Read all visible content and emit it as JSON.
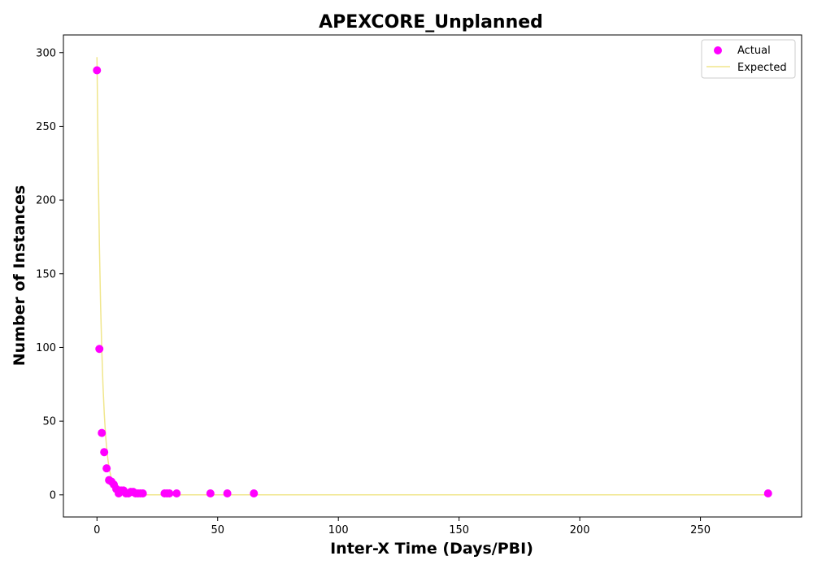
{
  "chart_data": {
    "type": "scatter",
    "title": "APEXCORE_Unplanned",
    "xlabel": "Inter-X Time (Days/PBI)",
    "ylabel": "Number of Instances",
    "xlim": [
      -13.9,
      291.9
    ],
    "ylim": [
      -15,
      312
    ],
    "xticks": [
      0,
      50,
      100,
      150,
      200,
      250
    ],
    "yticks": [
      0,
      50,
      100,
      150,
      200,
      250,
      300
    ],
    "grid": false,
    "legend_position": "top-right",
    "series": [
      {
        "name": "Actual",
        "kind": "scatter",
        "color": "#ff00ff",
        "x": [
          0,
          1,
          2,
          3,
          4,
          5,
          6,
          7,
          8,
          9,
          10,
          11,
          12,
          13,
          14,
          15,
          16,
          17,
          18,
          19,
          28,
          29,
          30,
          33,
          47,
          54,
          65,
          278
        ],
        "y": [
          288,
          99,
          42,
          29,
          18,
          10,
          9,
          7,
          4,
          1,
          3,
          3,
          1,
          1,
          2,
          2,
          1,
          1,
          1,
          1,
          1,
          1,
          1,
          1,
          1,
          1,
          1,
          1
        ]
      },
      {
        "name": "Expected",
        "kind": "line",
        "color": "#f0e68c",
        "x": [
          0,
          0.5,
          1,
          1.5,
          2,
          2.5,
          3,
          3.5,
          4,
          4.5,
          5,
          6,
          7,
          8,
          9,
          10,
          12,
          14,
          16,
          18,
          20,
          25,
          30,
          40,
          60,
          100,
          150,
          200,
          250,
          278
        ],
        "y": [
          297,
          225,
          170,
          129,
          98,
          74,
          56,
          42,
          32,
          24.5,
          18.5,
          10.6,
          6.1,
          3.5,
          2.0,
          1.15,
          0.38,
          0.12,
          0.04,
          0.01,
          0,
          0,
          0,
          0,
          0,
          0,
          0,
          0,
          0,
          0
        ]
      }
    ]
  }
}
